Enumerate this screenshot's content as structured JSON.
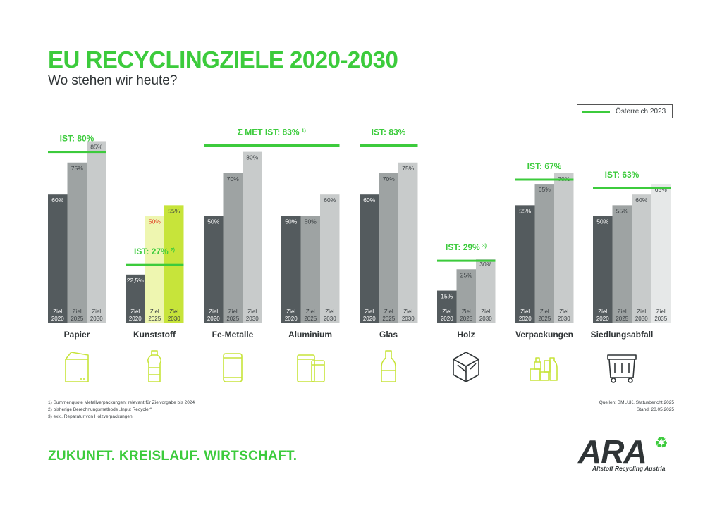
{
  "header": {
    "title": "EU RECYCLINGZIELE 2020-2030",
    "subtitle": "Wo stehen wir heute?"
  },
  "legend": {
    "label": "Österreich 2023",
    "color": "#3ccb3c"
  },
  "chart_data": {
    "type": "bar",
    "ylim": [
      0,
      100
    ],
    "colors": {
      "ziel2020": "#545b5e",
      "ziel2025": "#9ea3a3",
      "ziel2030": "#c8cbcb",
      "ziel2035": "#e6e8e8",
      "ist": "#3ccb3c",
      "highlight_text": "#e03a1e"
    },
    "groups": [
      {
        "name": "Papier",
        "icon": "paper-box-icon",
        "bars": [
          {
            "year_label": [
              "Ziel",
              "2020"
            ],
            "value": 60,
            "label": "60%",
            "shade": "ziel2020"
          },
          {
            "year_label": [
              "Ziel",
              "2025"
            ],
            "value": 75,
            "label": "75%",
            "shade": "ziel2025"
          },
          {
            "year_label": [
              "Ziel",
              "2030"
            ],
            "value": 85,
            "label": "85%",
            "shade": "ziel2030"
          }
        ],
        "ist": {
          "value": 80,
          "label": "IST: 80%",
          "sup": ""
        }
      },
      {
        "name": "Kunststoff",
        "icon": "plastic-bottle-icon",
        "bars": [
          {
            "year_label": [
              "Ziel",
              "2020"
            ],
            "value": 22.5,
            "label": "22,5%",
            "shade": "ziel2020"
          },
          {
            "year_label": [
              "Ziel",
              "2025"
            ],
            "value": 50,
            "label": "50%",
            "color": "#eef6b0",
            "text_color": "#e03a1e"
          },
          {
            "year_label": [
              "Ziel",
              "2030"
            ],
            "value": 55,
            "label": "55%",
            "color": "#c7e43a"
          }
        ],
        "ist": {
          "value": 27,
          "label": "IST: 27%",
          "sup": "2)"
        }
      },
      {
        "name": "Fe-Metalle",
        "icon": "can-icon",
        "bars": [
          {
            "year_label": [
              "Ziel",
              "2020"
            ],
            "value": 50,
            "label": "50%",
            "shade": "ziel2020"
          },
          {
            "year_label": [
              "Ziel",
              "2025"
            ],
            "value": 70,
            "label": "70%",
            "shade": "ziel2025"
          },
          {
            "year_label": [
              "Ziel",
              "2030"
            ],
            "value": 80,
            "label": "80%",
            "shade": "ziel2030"
          }
        ]
      },
      {
        "name": "Aluminium",
        "icon": "aluminium-can-icon",
        "bars": [
          {
            "year_label": [
              "Ziel",
              "2020"
            ],
            "value": 50,
            "label": "50%",
            "shade": "ziel2020"
          },
          {
            "year_label": [
              "Ziel",
              "2025"
            ],
            "value": 50,
            "label": "50%",
            "shade": "ziel2025"
          },
          {
            "year_label": [
              "Ziel",
              "2030"
            ],
            "value": 60,
            "label": "60%",
            "shade": "ziel2030"
          }
        ]
      },
      {
        "name": "Glas",
        "icon": "glass-bottle-icon",
        "bars": [
          {
            "year_label": [
              "Ziel",
              "2020"
            ],
            "value": 60,
            "label": "60%",
            "shade": "ziel2020"
          },
          {
            "year_label": [
              "Ziel",
              "2025"
            ],
            "value": 70,
            "label": "70%",
            "shade": "ziel2025"
          },
          {
            "year_label": [
              "Ziel",
              "2030"
            ],
            "value": 75,
            "label": "75%",
            "shade": "ziel2030"
          }
        ],
        "ist": {
          "value": 83,
          "label": "IST: 83%",
          "sup": ""
        }
      },
      {
        "name": "Holz",
        "icon": "wooden-crate-icon",
        "bars": [
          {
            "year_label": [
              "Ziel",
              "2020"
            ],
            "value": 15,
            "label": "15%",
            "shade": "ziel2020"
          },
          {
            "year_label": [
              "Ziel",
              "2025"
            ],
            "value": 25,
            "label": "25%",
            "shade": "ziel2025"
          },
          {
            "year_label": [
              "Ziel",
              "2030"
            ],
            "value": 30,
            "label": "30%",
            "shade": "ziel2030"
          }
        ],
        "ist": {
          "value": 29,
          "label": "IST: 29%",
          "sup": "3)"
        }
      },
      {
        "name": "Verpackungen",
        "icon": "packaging-icon",
        "bars": [
          {
            "year_label": [
              "Ziel",
              "2020"
            ],
            "value": 55,
            "label": "55%",
            "shade": "ziel2020"
          },
          {
            "year_label": [
              "Ziel",
              "2025"
            ],
            "value": 65,
            "label": "65%",
            "shade": "ziel2025"
          },
          {
            "year_label": [
              "Ziel",
              "2030"
            ],
            "value": 70,
            "label": "70%",
            "shade": "ziel2030"
          }
        ],
        "ist": {
          "value": 67,
          "label": "IST: 67%",
          "sup": ""
        }
      },
      {
        "name": "Siedlungsabfall",
        "icon": "waste-bin-icon",
        "bars": [
          {
            "year_label": [
              "Ziel",
              "2020"
            ],
            "value": 50,
            "label": "50%",
            "shade": "ziel2020"
          },
          {
            "year_label": [
              "Ziel",
              "2025"
            ],
            "value": 55,
            "label": "55%",
            "shade": "ziel2025"
          },
          {
            "year_label": [
              "Ziel",
              "2030"
            ],
            "value": 60,
            "label": "60%",
            "shade": "ziel2030"
          },
          {
            "year_label": [
              "Ziel",
              "2035"
            ],
            "value": 65,
            "label": "65%",
            "shade": "ziel2035"
          }
        ],
        "ist": {
          "value": 63,
          "label": "IST: 63%",
          "sup": ""
        }
      }
    ],
    "combined_ist": {
      "groups": [
        2,
        3
      ],
      "value": 83,
      "label": "Σ MET IST: 83%",
      "sup": "1)"
    }
  },
  "footnotes": [
    "1) Summenquote Metallverpackungen: relevant für Zielvorgabe bis 2024",
    "2) bisherige Berechnungsmethode „Input Recycler“",
    "3) exkl. Reparatur von Holzverpackungen"
  ],
  "sources": [
    "Quellen: BMLUK, Statusbericht 2025",
    "Stand: 28.05.2025"
  ],
  "footer": {
    "slogan": "ZUKUNFT. KREISLAUF. WIRTSCHAFT.",
    "logo_word": "ARA",
    "logo_tagline": "Altstoff Recycling Austria"
  }
}
